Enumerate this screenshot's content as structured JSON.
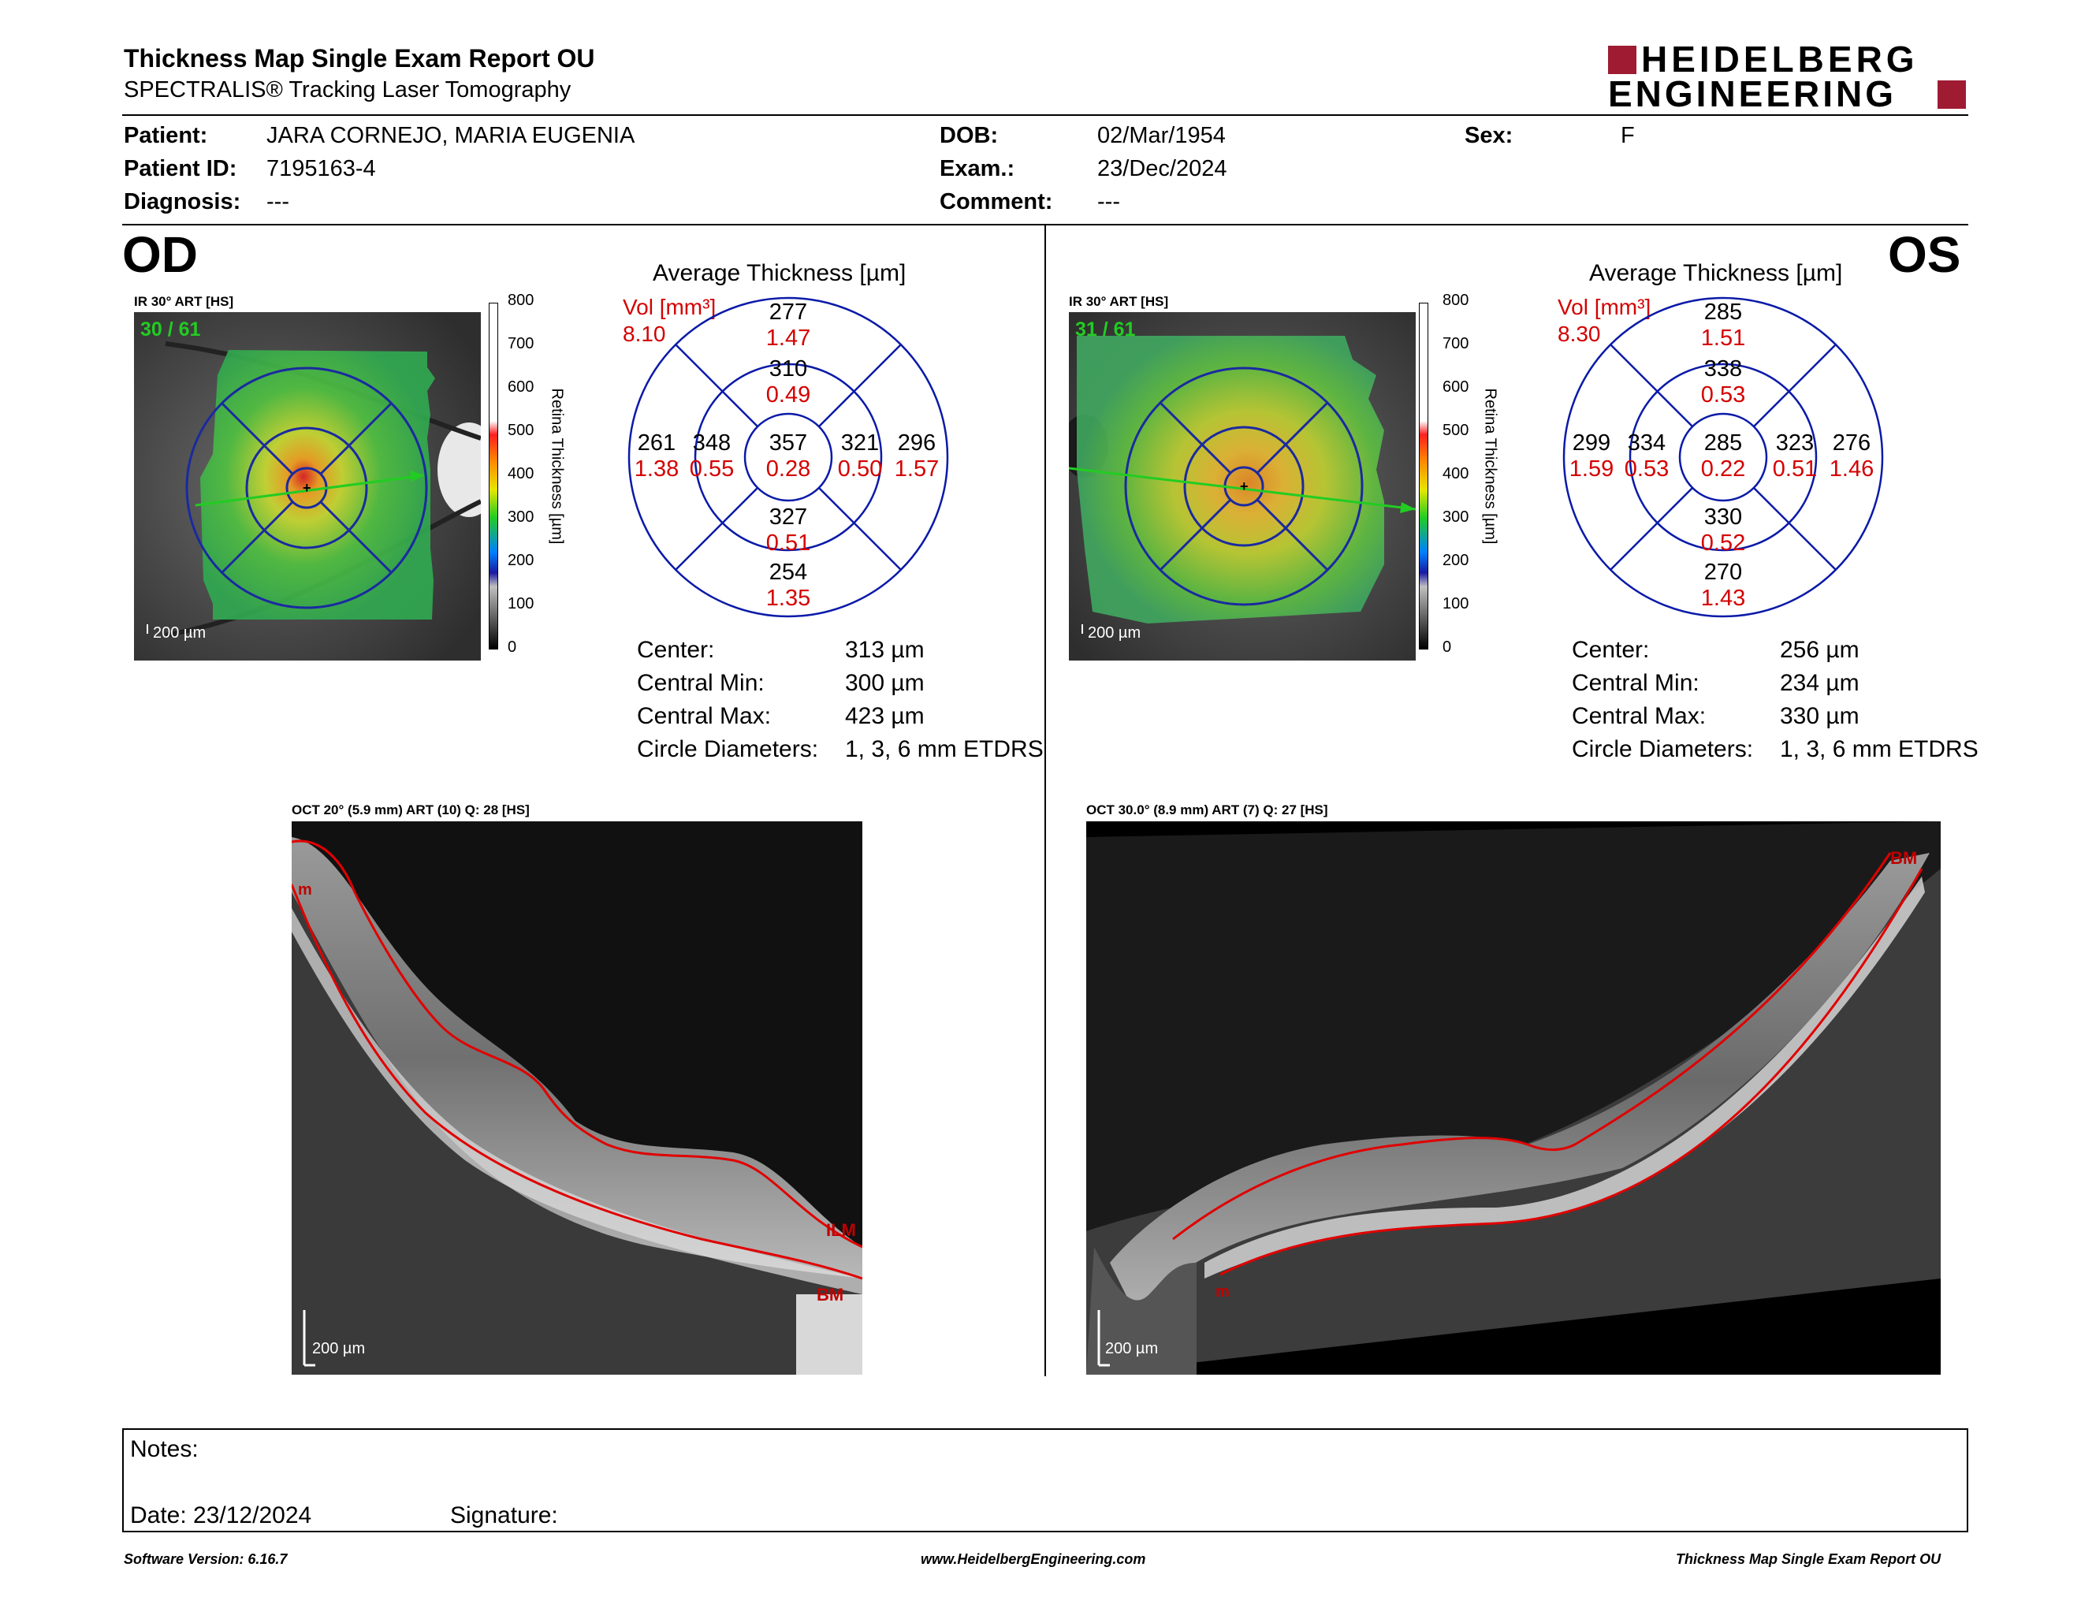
{
  "report": {
    "title": "Thickness Map Single Exam Report OU",
    "subtitle": "SPECTRALIS® Tracking Laser Tomography",
    "logo_line1": "HEIDELBERG",
    "logo_line2": "ENGINEERING"
  },
  "patient": {
    "patient_label": "Patient:",
    "patient_value": "JARA CORNEJO, MARIA EUGENIA",
    "id_label": "Patient ID:",
    "id_value": "7195163-4",
    "diagnosis_label": "Diagnosis:",
    "diagnosis_value": "---",
    "dob_label": "DOB:",
    "dob_value": "02/Mar/1954",
    "exam_label": "Exam.:",
    "exam_value": "23/Dec/2024",
    "comment_label": "Comment:",
    "comment_value": "---",
    "sex_label": "Sex:",
    "sex_value": "F"
  },
  "od": {
    "eye": "OD",
    "ir_title": "IR 30° ART [HS]",
    "frame": "30 / 61",
    "scale": "200 µm",
    "colorbar_ticks": [
      "800",
      "700",
      "600",
      "500",
      "400",
      "300",
      "200",
      "100",
      "0"
    ],
    "colorbar_label": "Retina Thickness [µm]",
    "avg_title": "Average Thickness [µm]",
    "vol_label": "Vol [mm³]",
    "vol_total": "8.10",
    "sectors": {
      "outer_sup": {
        "t": "277",
        "v": "1.47"
      },
      "inner_sup": {
        "t": "310",
        "v": "0.49"
      },
      "outer_left": {
        "t": "261",
        "v": "1.38"
      },
      "inner_left": {
        "t": "348",
        "v": "0.55"
      },
      "center": {
        "t": "357",
        "v": "0.28"
      },
      "inner_right": {
        "t": "321",
        "v": "0.50"
      },
      "outer_right": {
        "t": "296",
        "v": "1.57"
      },
      "inner_inf": {
        "t": "327",
        "v": "0.51"
      },
      "outer_inf": {
        "t": "254",
        "v": "1.35"
      }
    },
    "stats": [
      {
        "label": "Center:",
        "value": "313 µm"
      },
      {
        "label": "Central Min:",
        "value": "300 µm"
      },
      {
        "label": "Central Max:",
        "value": "423 µm"
      },
      {
        "label": "Circle Diameters:",
        "value": "1, 3, 6 mm ETDRS"
      }
    ],
    "oct_title": "OCT 20° (5.9 mm) ART (10) Q: 28 [HS]",
    "oct_scale": "200 µm",
    "oct_labels": [
      "ILM",
      "BM",
      "m"
    ]
  },
  "os": {
    "eye": "OS",
    "ir_title": "IR 30° ART [HS]",
    "frame": "31 / 61",
    "scale": "200 µm",
    "colorbar_ticks": [
      "800",
      "700",
      "600",
      "500",
      "400",
      "300",
      "200",
      "100",
      "0"
    ],
    "colorbar_label": "Retina Thickness [µm]",
    "avg_title": "Average Thickness [µm]",
    "vol_label": "Vol [mm³]",
    "vol_total": "8.30",
    "sectors": {
      "outer_sup": {
        "t": "285",
        "v": "1.51"
      },
      "inner_sup": {
        "t": "338",
        "v": "0.53"
      },
      "outer_left": {
        "t": "299",
        "v": "1.59"
      },
      "inner_left": {
        "t": "334",
        "v": "0.53"
      },
      "center": {
        "t": "285",
        "v": "0.22"
      },
      "inner_right": {
        "t": "323",
        "v": "0.51"
      },
      "outer_right": {
        "t": "276",
        "v": "1.46"
      },
      "inner_inf": {
        "t": "330",
        "v": "0.52"
      },
      "outer_inf": {
        "t": "270",
        "v": "1.43"
      }
    },
    "stats": [
      {
        "label": "Center:",
        "value": "256 µm"
      },
      {
        "label": "Central Min:",
        "value": "234 µm"
      },
      {
        "label": "Central Max:",
        "value": "330 µm"
      },
      {
        "label": "Circle Diameters:",
        "value": "1, 3, 6 mm ETDRS"
      }
    ],
    "oct_title": "OCT 30.0° (8.9 mm) ART (7) Q: 27 [HS]",
    "oct_scale": "200 µm",
    "oct_labels": [
      "BM",
      "m"
    ]
  },
  "notes": {
    "notes_label": "Notes:",
    "date_label": "Date: 23/12/2024",
    "signature_label": "Signature:"
  },
  "footer": {
    "version": "Software Version: 6.16.7",
    "url": "www.HeidelbergEngineering.com",
    "report": "Thickness Map Single Exam Report OU"
  },
  "colors": {
    "red": "#d40000",
    "blue": "#0a1aa8",
    "green": "#22cc22",
    "logo": "#9e1b32"
  }
}
